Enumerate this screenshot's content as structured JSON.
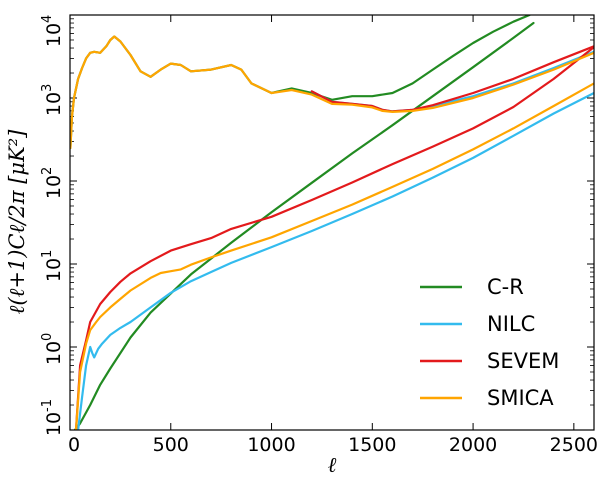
{
  "chart_data": {
    "type": "line",
    "title": "",
    "xlabel": "ℓ",
    "ylabel": "ℓ(ℓ+1)Cℓ/2π [μK²]",
    "xlim": [
      0,
      2600
    ],
    "ylim": [
      0.1,
      10000
    ],
    "yscale": "log",
    "x_ticks": [
      {
        "value": 0,
        "label": "0"
      },
      {
        "value": 500,
        "label": "500"
      },
      {
        "value": 1000,
        "label": "1000"
      },
      {
        "value": 1500,
        "label": "1500"
      },
      {
        "value": 2000,
        "label": "2000"
      },
      {
        "value": 2500,
        "label": "2500"
      }
    ],
    "y_ticks": [
      {
        "value": 0.1,
        "base": "10",
        "exp": "-1"
      },
      {
        "value": 1,
        "base": "10",
        "exp": "0"
      },
      {
        "value": 10,
        "base": "10",
        "exp": "1"
      },
      {
        "value": 100,
        "base": "10",
        "exp": "2"
      },
      {
        "value": 1000,
        "base": "10",
        "exp": "3"
      },
      {
        "value": 10000,
        "base": "10",
        "exp": "4"
      }
    ],
    "legend_position": "bottom-right",
    "series": [
      {
        "name": "C-R",
        "color": "#228B22",
        "x": [
          10,
          50,
          100,
          150,
          200,
          300,
          400,
          600,
          800,
          1000,
          1200,
          1400,
          1600,
          1800,
          2000,
          2200,
          2300
        ],
        "values": [
          0.09,
          0.12,
          0.2,
          0.35,
          0.55,
          1.3,
          2.6,
          7.5,
          18,
          42,
          95,
          215,
          470,
          1050,
          2350,
          5300,
          8000
        ]
      },
      {
        "name": "C-R",
        "color": "#228B22",
        "x": [
          2,
          5,
          10,
          20,
          40,
          60,
          80,
          100,
          120,
          150,
          180,
          200,
          220,
          250,
          300,
          350,
          400,
          450,
          500,
          550,
          600,
          700,
          800,
          850,
          900,
          1000,
          1100,
          1200,
          1300,
          1400,
          1500,
          1600,
          1700,
          1800,
          1900,
          2000,
          2100,
          2200,
          2280
        ],
        "values": [
          250,
          350,
          600,
          1000,
          1700,
          2300,
          3000,
          3500,
          3600,
          3500,
          4200,
          5000,
          5500,
          4800,
          3300,
          2100,
          1800,
          2200,
          2600,
          2500,
          2100,
          2200,
          2500,
          2200,
          1500,
          1150,
          1300,
          1150,
          950,
          1050,
          1050,
          1150,
          1500,
          2200,
          3200,
          4600,
          6300,
          8300,
          10000
        ]
      },
      {
        "name": "NILC",
        "color": "#33BBEE",
        "x": [
          40,
          60,
          80,
          100,
          110,
          120,
          140,
          160,
          200,
          250,
          300,
          400,
          500,
          600,
          700,
          800,
          1000,
          1200,
          1400,
          1600,
          1800,
          2000,
          2200,
          2400,
          2600
        ],
        "values": [
          0.1,
          0.25,
          0.6,
          1.0,
          0.85,
          0.75,
          0.95,
          1.1,
          1.4,
          1.7,
          2.0,
          3.0,
          4.5,
          6.2,
          8.0,
          10.3,
          16,
          25,
          40,
          65,
          110,
          190,
          350,
          650,
          1150
        ]
      },
      {
        "name": "NILC",
        "color": "#33BBEE",
        "x": [
          1200,
          1300,
          1400,
          1500,
          1550,
          1600,
          1700,
          1800,
          2000,
          2200,
          2400,
          2600
        ],
        "values": [
          1200,
          900,
          850,
          800,
          720,
          690,
          720,
          800,
          1050,
          1500,
          2300,
          3600
        ]
      },
      {
        "name": "SEVEM",
        "color": "#E31A1C",
        "x": [
          30,
          50,
          80,
          100,
          150,
          200,
          250,
          300,
          400,
          500,
          600,
          700,
          800,
          1000,
          1200,
          1400,
          1600,
          1800,
          2000,
          2200,
          2400,
          2600
        ],
        "values": [
          0.1,
          0.6,
          1.2,
          2.0,
          3.3,
          4.6,
          6.1,
          7.7,
          10.8,
          14.5,
          17.3,
          20.5,
          26.5,
          37,
          59,
          96,
          160,
          260,
          430,
          780,
          1700,
          4100
        ]
      },
      {
        "name": "SEVEM",
        "color": "#E31A1C",
        "x": [
          1200,
          1300,
          1400,
          1500,
          1550,
          1600,
          1700,
          1800,
          2000,
          2200,
          2400,
          2600
        ],
        "values": [
          1200,
          900,
          850,
          800,
          720,
          690,
          720,
          820,
          1150,
          1700,
          2700,
          4200
        ]
      },
      {
        "name": "SMICA",
        "color": "#FFA500",
        "x": [
          2,
          5,
          10,
          20,
          40,
          60,
          80,
          100,
          120,
          150,
          180,
          200,
          220,
          250,
          300,
          350,
          400,
          450,
          500,
          550,
          600,
          700,
          800,
          850,
          900,
          1000,
          1100,
          1200,
          1300,
          1400,
          1500,
          1550,
          1600,
          1700,
          1800,
          2000,
          2200,
          2400,
          2600
        ],
        "values": [
          250,
          350,
          600,
          1000,
          1700,
          2300,
          3000,
          3500,
          3600,
          3500,
          4200,
          5000,
          5500,
          4800,
          3300,
          2100,
          1800,
          2200,
          2600,
          2500,
          2100,
          2200,
          2500,
          2200,
          1500,
          1150,
          1250,
          1100,
          850,
          830,
          770,
          700,
          680,
          700,
          760,
          1000,
          1450,
          2200,
          3500
        ]
      },
      {
        "name": "SMICA",
        "color": "#FFA500",
        "x": [
          30,
          50,
          80,
          100,
          130,
          150,
          200,
          250,
          300,
          400,
          450,
          500,
          550,
          600,
          700,
          800,
          1000,
          1200,
          1400,
          1600,
          1800,
          2000,
          2200,
          2400,
          2600
        ],
        "values": [
          0.1,
          0.5,
          1.1,
          1.6,
          2.0,
          2.3,
          3.0,
          3.8,
          4.8,
          6.8,
          7.8,
          8.2,
          8.6,
          9.8,
          12,
          14.5,
          21,
          33,
          52,
          85,
          140,
          240,
          430,
          800,
          1500
        ]
      }
    ],
    "legend": [
      {
        "label": "C-R",
        "color": "#228B22"
      },
      {
        "label": "NILC",
        "color": "#33BBEE"
      },
      {
        "label": "SEVEM",
        "color": "#E31A1C"
      },
      {
        "label": "SMICA",
        "color": "#FFA500"
      }
    ]
  }
}
